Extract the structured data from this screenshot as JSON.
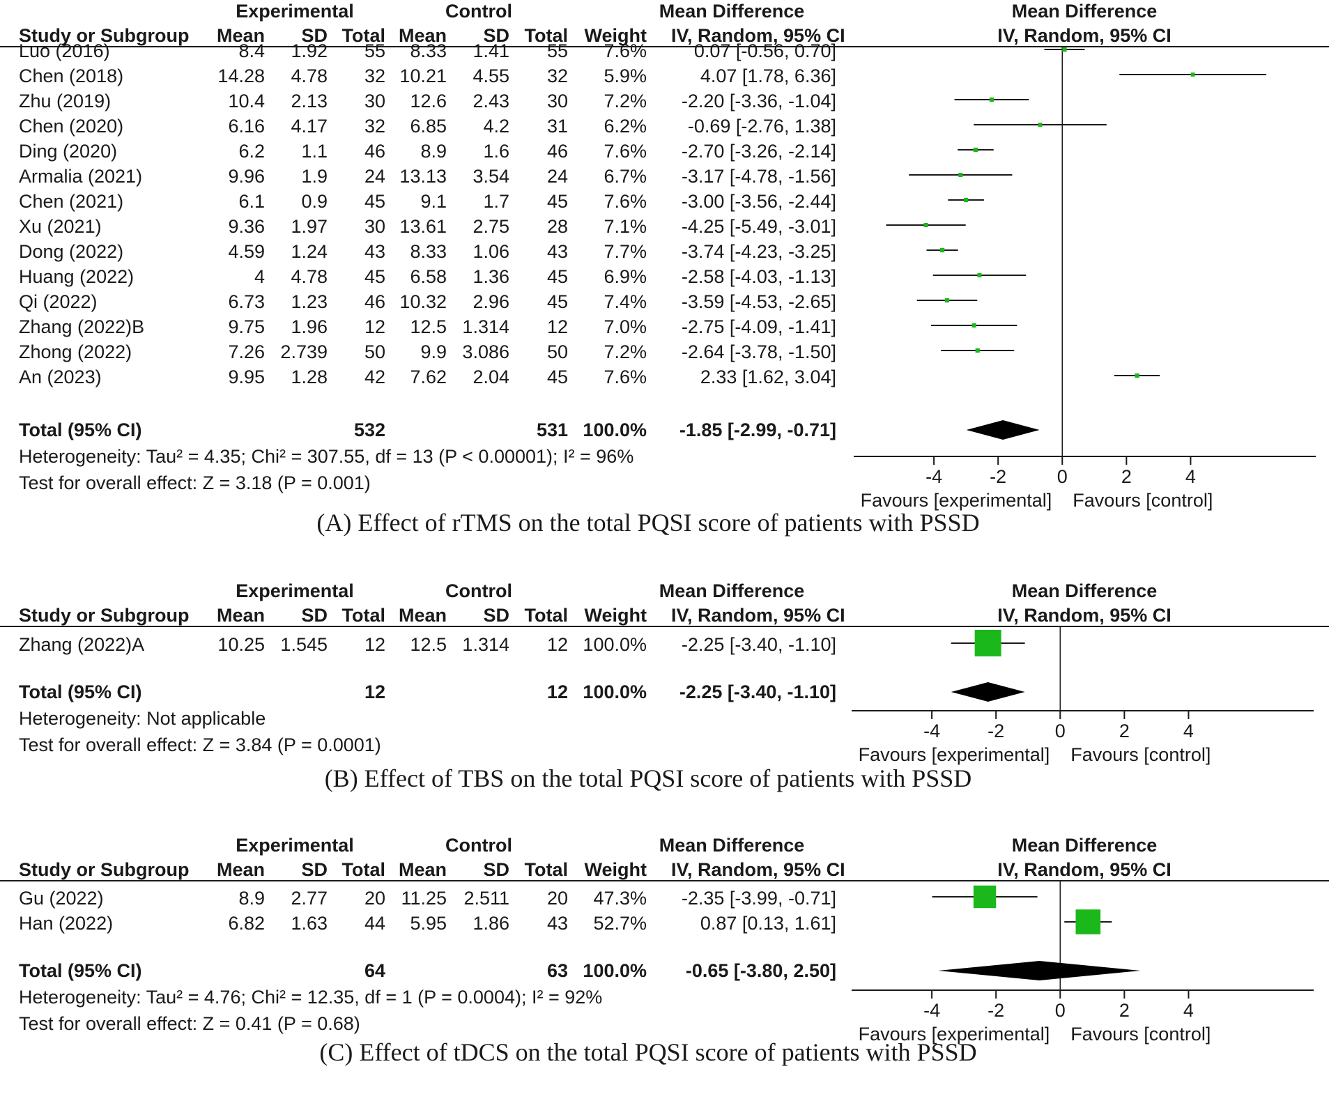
{
  "colors": {
    "square": "#1bb81b",
    "diamond": "#000000",
    "line": "#1a1a1a"
  },
  "headers": {
    "experimental": "Experimental",
    "control": "Control",
    "study": "Study or Subgroup",
    "mean": "Mean",
    "sd": "SD",
    "total": "Total",
    "weight": "Weight",
    "md_title": "Mean Difference",
    "md_method": "IV, Random, 95% CI",
    "axis_ticks": [
      "-4",
      "-2",
      "0",
      "2",
      "4"
    ],
    "favours_left": "Favours [experimental]",
    "favours_right": "Favours [control]",
    "total_label": "Total (95% CI)"
  },
  "panels": [
    {
      "caption": "(A) Effect of rTMS on the total PQSI score of patients with PSSD",
      "studies": [
        {
          "name": "Luo (2016)",
          "e_mean": "8.4",
          "e_sd": "1.92",
          "e_total": "55",
          "c_mean": "8.33",
          "c_sd": "1.41",
          "c_total": "55",
          "weight": "7.6%",
          "ci_text": "0.07 [-0.56, 0.70]",
          "md": 0.07,
          "lo": -0.56,
          "hi": 0.7,
          "w": 7.6
        },
        {
          "name": "Chen (2018)",
          "e_mean": "14.28",
          "e_sd": "4.78",
          "e_total": "32",
          "c_mean": "10.21",
          "c_sd": "4.55",
          "c_total": "32",
          "weight": "5.9%",
          "ci_text": "4.07 [1.78, 6.36]",
          "md": 4.07,
          "lo": 1.78,
          "hi": 6.36,
          "w": 5.9
        },
        {
          "name": "Zhu (2019)",
          "e_mean": "10.4",
          "e_sd": "2.13",
          "e_total": "30",
          "c_mean": "12.6",
          "c_sd": "2.43",
          "c_total": "30",
          "weight": "7.2%",
          "ci_text": "-2.20 [-3.36, -1.04]",
          "md": -2.2,
          "lo": -3.36,
          "hi": -1.04,
          "w": 7.2
        },
        {
          "name": "Chen (2020)",
          "e_mean": "6.16",
          "e_sd": "4.17",
          "e_total": "32",
          "c_mean": "6.85",
          "c_sd": "4.2",
          "c_total": "31",
          "weight": "6.2%",
          "ci_text": "-0.69 [-2.76, 1.38]",
          "md": -0.69,
          "lo": -2.76,
          "hi": 1.38,
          "w": 6.2
        },
        {
          "name": "Ding (2020)",
          "e_mean": "6.2",
          "e_sd": "1.1",
          "e_total": "46",
          "c_mean": "8.9",
          "c_sd": "1.6",
          "c_total": "46",
          "weight": "7.6%",
          "ci_text": "-2.70 [-3.26, -2.14]",
          "md": -2.7,
          "lo": -3.26,
          "hi": -2.14,
          "w": 7.6
        },
        {
          "name": "Armalia (2021)",
          "e_mean": "9.96",
          "e_sd": "1.9",
          "e_total": "24",
          "c_mean": "13.13",
          "c_sd": "3.54",
          "c_total": "24",
          "weight": "6.7%",
          "ci_text": "-3.17 [-4.78, -1.56]",
          "md": -3.17,
          "lo": -4.78,
          "hi": -1.56,
          "w": 6.7
        },
        {
          "name": "Chen (2021)",
          "e_mean": "6.1",
          "e_sd": "0.9",
          "e_total": "45",
          "c_mean": "9.1",
          "c_sd": "1.7",
          "c_total": "45",
          "weight": "7.6%",
          "ci_text": "-3.00 [-3.56, -2.44]",
          "md": -3.0,
          "lo": -3.56,
          "hi": -2.44,
          "w": 7.6
        },
        {
          "name": "Xu (2021)",
          "e_mean": "9.36",
          "e_sd": "1.97",
          "e_total": "30",
          "c_mean": "13.61",
          "c_sd": "2.75",
          "c_total": "28",
          "weight": "7.1%",
          "ci_text": "-4.25 [-5.49, -3.01]",
          "md": -4.25,
          "lo": -5.49,
          "hi": -3.01,
          "w": 7.1
        },
        {
          "name": "Dong (2022)",
          "e_mean": "4.59",
          "e_sd": "1.24",
          "e_total": "43",
          "c_mean": "8.33",
          "c_sd": "1.06",
          "c_total": "43",
          "weight": "7.7%",
          "ci_text": "-3.74 [-4.23, -3.25]",
          "md": -3.74,
          "lo": -4.23,
          "hi": -3.25,
          "w": 7.7
        },
        {
          "name": "Huang (2022)",
          "e_mean": "4",
          "e_sd": "4.78",
          "e_total": "45",
          "c_mean": "6.58",
          "c_sd": "1.36",
          "c_total": "45",
          "weight": "6.9%",
          "ci_text": "-2.58 [-4.03, -1.13]",
          "md": -2.58,
          "lo": -4.03,
          "hi": -1.13,
          "w": 6.9
        },
        {
          "name": "Qi (2022)",
          "e_mean": "6.73",
          "e_sd": "1.23",
          "e_total": "46",
          "c_mean": "10.32",
          "c_sd": "2.96",
          "c_total": "45",
          "weight": "7.4%",
          "ci_text": "-3.59 [-4.53, -2.65]",
          "md": -3.59,
          "lo": -4.53,
          "hi": -2.65,
          "w": 7.4
        },
        {
          "name": "Zhang (2022)B",
          "e_mean": "9.75",
          "e_sd": "1.96",
          "e_total": "12",
          "c_mean": "12.5",
          "c_sd": "1.314",
          "c_total": "12",
          "weight": "7.0%",
          "ci_text": "-2.75 [-4.09, -1.41]",
          "md": -2.75,
          "lo": -4.09,
          "hi": -1.41,
          "w": 7.0
        },
        {
          "name": "Zhong (2022)",
          "e_mean": "7.26",
          "e_sd": "2.739",
          "e_total": "50",
          "c_mean": "9.9",
          "c_sd": "3.086",
          "c_total": "50",
          "weight": "7.2%",
          "ci_text": "-2.64 [-3.78, -1.50]",
          "md": -2.64,
          "lo": -3.78,
          "hi": -1.5,
          "w": 7.2
        },
        {
          "name": "An (2023)",
          "e_mean": "9.95",
          "e_sd": "1.28",
          "e_total": "42",
          "c_mean": "7.62",
          "c_sd": "2.04",
          "c_total": "45",
          "weight": "7.6%",
          "ci_text": "2.33 [1.62, 3.04]",
          "md": 2.33,
          "lo": 1.62,
          "hi": 3.04,
          "w": 7.6
        }
      ],
      "total": {
        "e_total": "532",
        "c_total": "531",
        "weight": "100.0%",
        "ci_text": "-1.85 [-2.99, -0.71]",
        "md": -1.85,
        "lo": -2.99,
        "hi": -0.71
      },
      "heterogeneity": "Heterogeneity: Tau² = 4.35; Chi² = 307.55, df = 13 (P < 0.00001); I² = 96%",
      "overall": "Test for overall effect: Z = 3.18 (P = 0.001)"
    },
    {
      "caption": "(B) Effect of TBS on the total PQSI score of patients with PSSD",
      "studies": [
        {
          "name": "Zhang (2022)A",
          "e_mean": "10.25",
          "e_sd": "1.545",
          "e_total": "12",
          "c_mean": "12.5",
          "c_sd": "1.314",
          "c_total": "12",
          "weight": "100.0%",
          "ci_text": "-2.25 [-3.40, -1.10]",
          "md": -2.25,
          "lo": -3.4,
          "hi": -1.1,
          "w": 100.0
        }
      ],
      "total": {
        "e_total": "12",
        "c_total": "12",
        "weight": "100.0%",
        "ci_text": "-2.25 [-3.40, -1.10]",
        "md": -2.25,
        "lo": -3.4,
        "hi": -1.1
      },
      "heterogeneity": "Heterogeneity: Not applicable",
      "overall": "Test for overall effect: Z = 3.84 (P = 0.0001)"
    },
    {
      "caption": "(C) Effect of tDCS on the total PQSI score of patients with PSSD",
      "studies": [
        {
          "name": "Gu (2022)",
          "e_mean": "8.9",
          "e_sd": "2.77",
          "e_total": "20",
          "c_mean": "11.25",
          "c_sd": "2.511",
          "c_total": "20",
          "weight": "47.3%",
          "ci_text": "-2.35 [-3.99, -0.71]",
          "md": -2.35,
          "lo": -3.99,
          "hi": -0.71,
          "w": 47.3
        },
        {
          "name": "Han (2022)",
          "e_mean": "6.82",
          "e_sd": "1.63",
          "e_total": "44",
          "c_mean": "5.95",
          "c_sd": "1.86",
          "c_total": "43",
          "weight": "52.7%",
          "ci_text": "0.87 [0.13, 1.61]",
          "md": 0.87,
          "lo": 0.13,
          "hi": 1.61,
          "w": 52.7
        }
      ],
      "total": {
        "e_total": "64",
        "c_total": "63",
        "weight": "100.0%",
        "ci_text": "-0.65 [-3.80, 2.50]",
        "md": -0.65,
        "lo": -3.8,
        "hi": 2.5
      },
      "heterogeneity": "Heterogeneity: Tau² = 4.76; Chi² = 12.35, df = 1 (P = 0.0004); I² = 92%",
      "overall": "Test for overall effect: Z = 0.41 (P = 0.68)"
    }
  ],
  "chart_data": [
    {
      "type": "forest",
      "title": "(A) Effect of rTMS on the total PQSI score of patients with PSSD",
      "xlabel_left": "Favours [experimental]",
      "xlabel_right": "Favours [control]",
      "xticks": [
        -4,
        -2,
        0,
        2,
        4
      ],
      "categories": [
        "Luo (2016)",
        "Chen (2018)",
        "Zhu (2019)",
        "Chen (2020)",
        "Ding (2020)",
        "Armalia (2021)",
        "Chen (2021)",
        "Xu (2021)",
        "Dong (2022)",
        "Huang (2022)",
        "Qi (2022)",
        "Zhang (2022)B",
        "Zhong (2022)",
        "An (2023)"
      ],
      "md": [
        0.07,
        4.07,
        -2.2,
        -0.69,
        -2.7,
        -3.17,
        -3.0,
        -4.25,
        -3.74,
        -2.58,
        -3.59,
        -2.75,
        -2.64,
        2.33
      ],
      "ci_low": [
        -0.56,
        1.78,
        -3.36,
        -2.76,
        -3.26,
        -4.78,
        -3.56,
        -5.49,
        -4.23,
        -4.03,
        -4.53,
        -4.09,
        -3.78,
        1.62
      ],
      "ci_high": [
        0.7,
        6.36,
        -1.04,
        1.38,
        -2.14,
        -1.56,
        -2.44,
        -3.01,
        -3.25,
        -1.13,
        -2.65,
        -1.41,
        -1.5,
        3.04
      ],
      "weights": [
        7.6,
        5.9,
        7.2,
        6.2,
        7.6,
        6.7,
        7.6,
        7.1,
        7.7,
        6.9,
        7.4,
        7.0,
        7.2,
        7.6
      ],
      "pooled": {
        "md": -1.85,
        "ci": [
          -2.99,
          -0.71
        ]
      }
    },
    {
      "type": "forest",
      "title": "(B) Effect of TBS on the total PQSI score of patients with PSSD",
      "xlabel_left": "Favours [experimental]",
      "xlabel_right": "Favours [control]",
      "xticks": [
        -4,
        -2,
        0,
        2,
        4
      ],
      "categories": [
        "Zhang (2022)A"
      ],
      "md": [
        -2.25
      ],
      "ci_low": [
        -3.4
      ],
      "ci_high": [
        -1.1
      ],
      "weights": [
        100.0
      ],
      "pooled": {
        "md": -2.25,
        "ci": [
          -3.4,
          -1.1
        ]
      }
    },
    {
      "type": "forest",
      "title": "(C) Effect of tDCS on the total PQSI score of patients with PSSD",
      "xlabel_left": "Favours [experimental]",
      "xlabel_right": "Favours [control]",
      "xticks": [
        -4,
        -2,
        0,
        2,
        4
      ],
      "categories": [
        "Gu (2022)",
        "Han (2022)"
      ],
      "md": [
        -2.35,
        0.87
      ],
      "ci_low": [
        -3.99,
        0.13
      ],
      "ci_high": [
        -0.71,
        1.61
      ],
      "weights": [
        47.3,
        52.7
      ],
      "pooled": {
        "md": -0.65,
        "ci": [
          -3.8,
          2.5
        ]
      }
    }
  ]
}
